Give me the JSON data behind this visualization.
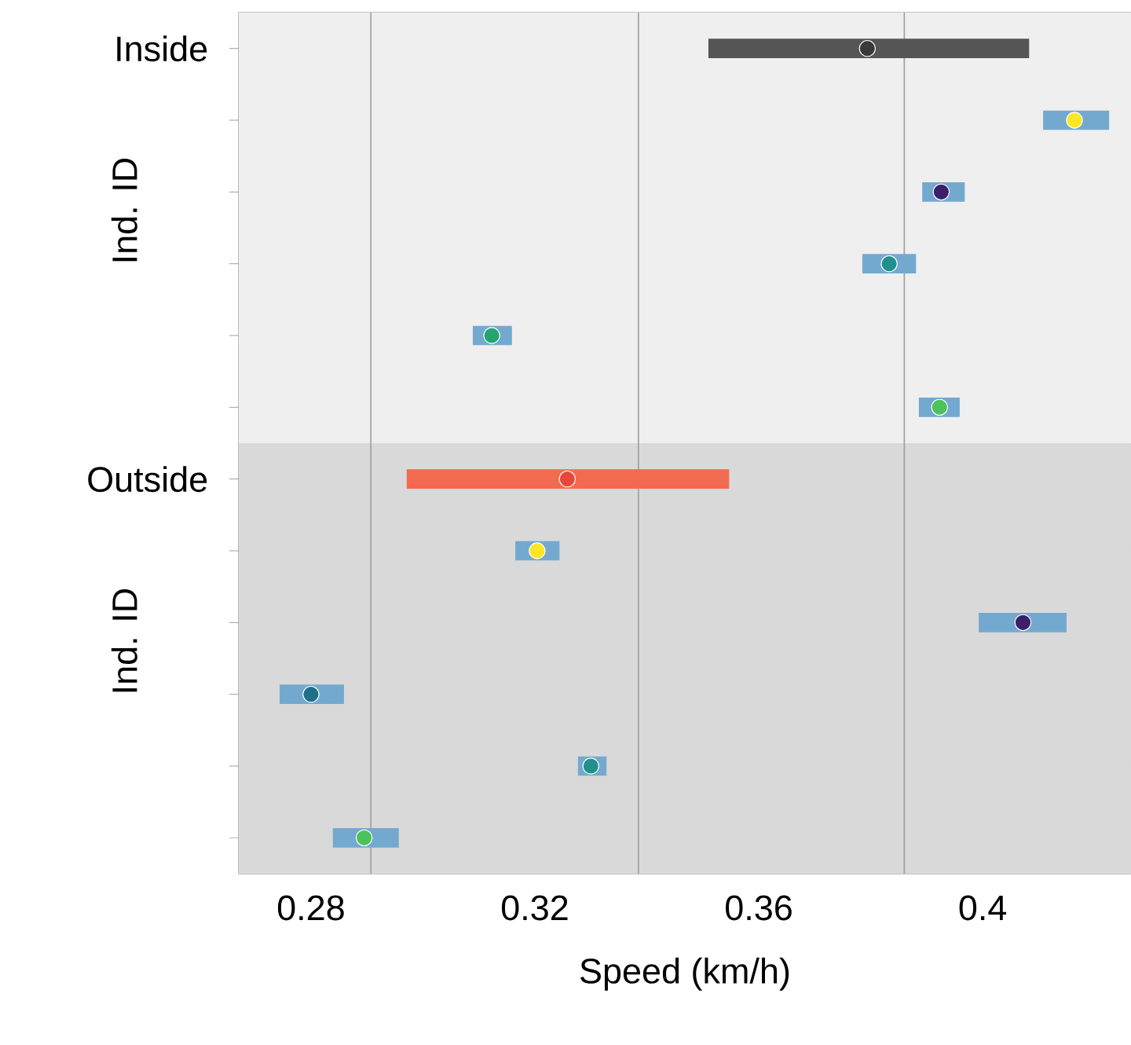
{
  "chart_data": {
    "type": "scatter",
    "orientation": "horizontal",
    "xlabel": "Speed (km/h)",
    "ylabel": "Ind. ID",
    "annotations": [
      "Ind. ID"
    ],
    "categories": [
      "Inside",
      null,
      null,
      null,
      null,
      null,
      "Outside",
      null,
      null,
      null,
      null,
      null
    ],
    "xlim": [
      0.2671,
      0.4265
    ],
    "xticks": [
      0.28,
      0.32,
      0.36,
      0.4
    ],
    "bands": [
      {
        "axis": "x",
        "from": 0.2671,
        "to": 0.4265,
        "color": "#d9d9d9"
      },
      {
        "axis": "y",
        "from": "Inside",
        "to": "Outside",
        "color": "#efefef"
      }
    ],
    "ref_lines": [
      {
        "axis": "x",
        "value": 0.2907,
        "color": "#a0a0a0"
      },
      {
        "axis": "x",
        "value": 0.3385,
        "color": "#a0a0a0"
      },
      {
        "axis": "x",
        "value": 0.386,
        "color": "#a0a0a0"
      }
    ],
    "series": [
      {
        "type": "bar",
        "colors": [
          "#555555",
          "#74a9cf",
          "#74a9cf",
          "#74a9cf",
          "#74a9cf",
          "#74a9cf",
          "#f26b50",
          "#74a9cf",
          "#74a9cf",
          "#74a9cf",
          "#74a9cf",
          "#74a9cf"
        ],
        "base": [
          0.351,
          0.4108,
          0.3892,
          0.3785,
          0.3089,
          0.3886,
          0.2971,
          0.3165,
          0.3993,
          0.2744,
          0.3277,
          0.2839
        ],
        "values": [
          0.0573,
          0.0118,
          0.0076,
          0.0096,
          0.007,
          0.0073,
          0.0576,
          0.0079,
          0.0157,
          0.0115,
          0.0051,
          0.0118
        ]
      },
      {
        "colors": [
          "#3a3a3a",
          "#fde725",
          "#3b1f6b",
          "#21908d",
          "#25a56e",
          "#4cc25a",
          "#e8473a",
          "#fde725",
          "#3b1f6b",
          "#1f6f8b",
          "#21908d",
          "#4cc25a"
        ],
        "values": [
          0.3794,
          0.4164,
          0.3926,
          0.3833,
          0.3123,
          0.3923,
          0.3258,
          0.3204,
          0.4072,
          0.28,
          0.33,
          0.2895
        ]
      }
    ]
  }
}
